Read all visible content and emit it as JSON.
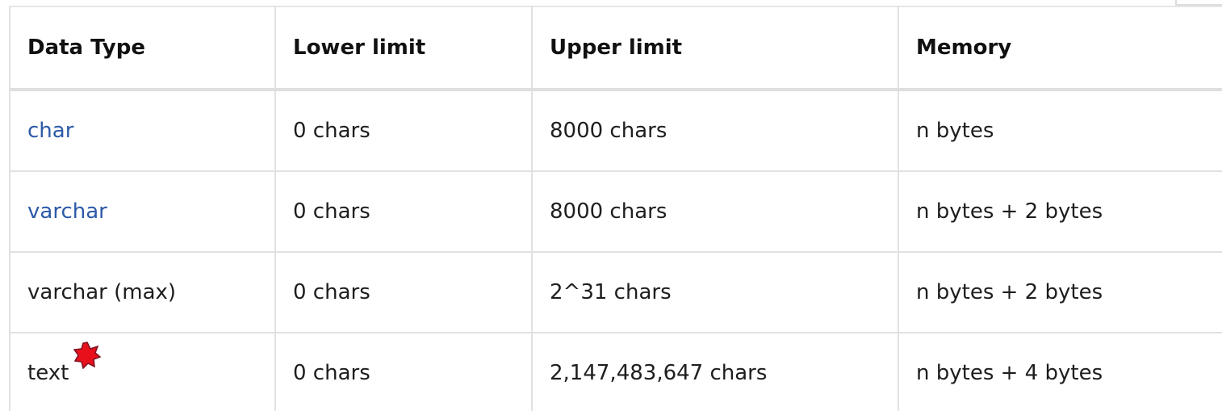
{
  "table": {
    "header": [
      "Data Type",
      "Lower limit",
      "Upper limit",
      "Memory"
    ],
    "rows": [
      [
        "char",
        "0 chars",
        "8000 chars",
        "n bytes"
      ],
      [
        "varchar",
        "0 chars",
        "8000 chars",
        "n bytes + 2 bytes"
      ],
      [
        "varchar (max)",
        "0 chars",
        "2^31 chars",
        "n bytes + 2 bytes"
      ],
      [
        "text",
        "0 chars",
        "2,147,483,647 chars",
        "n bytes + 4 bytes"
      ]
    ]
  }
}
